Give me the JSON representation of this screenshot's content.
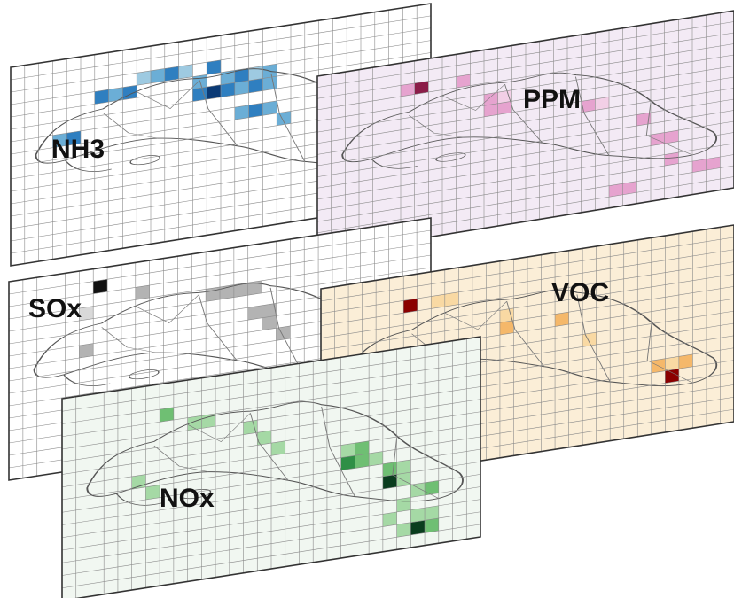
{
  "figure": {
    "panels": [
      {
        "id": "nh3",
        "label": "NH3",
        "background": "#ffffff",
        "colors": [
          "#d6e8f6",
          "#9ecae1",
          "#6baed6",
          "#2f7fc0",
          "#0b3a75"
        ],
        "cells": [
          [
            6,
            3,
            3
          ],
          [
            7,
            3,
            2
          ],
          [
            8,
            3,
            3
          ],
          [
            9,
            2,
            1
          ],
          [
            10,
            2,
            2
          ],
          [
            11,
            2,
            3
          ],
          [
            12,
            2,
            1
          ],
          [
            13,
            3,
            2
          ],
          [
            14,
            2,
            3
          ],
          [
            15,
            3,
            2
          ],
          [
            16,
            3,
            3
          ],
          [
            17,
            3,
            1
          ],
          [
            18,
            3,
            2
          ],
          [
            13,
            4,
            3
          ],
          [
            14,
            4,
            4
          ],
          [
            15,
            4,
            3
          ],
          [
            16,
            4,
            2
          ],
          [
            17,
            4,
            3
          ],
          [
            18,
            4,
            2
          ],
          [
            3,
            6,
            2
          ],
          [
            4,
            6,
            3
          ],
          [
            16,
            6,
            2
          ],
          [
            17,
            6,
            3
          ],
          [
            18,
            6,
            2
          ],
          [
            19,
            7,
            2
          ],
          [
            22,
            7,
            3
          ],
          [
            23,
            8,
            1
          ],
          [
            24,
            8,
            2
          ],
          [
            25,
            8,
            3
          ],
          [
            24,
            10,
            2
          ],
          [
            25,
            10,
            1
          ],
          [
            23,
            12,
            2
          ],
          [
            24,
            12,
            1
          ],
          [
            27,
            14,
            1
          ],
          [
            28,
            14,
            2
          ],
          [
            28,
            16,
            2
          ]
        ]
      },
      {
        "id": "ppm",
        "label": "PPM",
        "background": "#f3eaf5",
        "colors": [
          "#f2cfe6",
          "#e6a3cf",
          "#d566b0",
          "#8b1c48"
        ],
        "cells": [
          [
            7,
            2,
            3
          ],
          [
            6,
            2,
            1
          ],
          [
            10,
            2,
            1
          ],
          [
            12,
            4,
            1
          ],
          [
            13,
            4,
            0
          ],
          [
            12,
            5,
            1
          ],
          [
            13,
            5,
            1
          ],
          [
            19,
            6,
            1
          ],
          [
            20,
            6,
            0
          ],
          [
            23,
            8,
            1
          ],
          [
            24,
            10,
            1
          ],
          [
            25,
            10,
            1
          ],
          [
            25,
            12,
            1
          ],
          [
            27,
            13,
            1
          ],
          [
            28,
            13,
            1
          ],
          [
            21,
            14,
            1
          ],
          [
            22,
            14,
            1
          ]
        ]
      },
      {
        "id": "sox",
        "label": "SOx",
        "background": "#ffffff",
        "colors": [
          "#d9d9d9",
          "#b3b3b3",
          "#8c8c8c",
          "#111111"
        ],
        "cells": [
          [
            6,
            1,
            3
          ],
          [
            9,
            2,
            1
          ],
          [
            5,
            3,
            0
          ],
          [
            14,
            3,
            1
          ],
          [
            15,
            3,
            1
          ],
          [
            16,
            3,
            1
          ],
          [
            17,
            3,
            1
          ],
          [
            17,
            5,
            1
          ],
          [
            18,
            5,
            1
          ],
          [
            18,
            6,
            1
          ],
          [
            19,
            7,
            1
          ],
          [
            5,
            6,
            1
          ]
        ]
      },
      {
        "id": "voc",
        "label": "VOC",
        "background": "#fbeed7",
        "colors": [
          "#f9d9a3",
          "#f5b86a",
          "#e58a3a",
          "#8b0000"
        ],
        "cells": [
          [
            6,
            2,
            3
          ],
          [
            8,
            2,
            0
          ],
          [
            9,
            2,
            0
          ],
          [
            13,
            4,
            0
          ],
          [
            13,
            5,
            1
          ],
          [
            17,
            5,
            1
          ],
          [
            24,
            10,
            1
          ],
          [
            25,
            10,
            0
          ],
          [
            26,
            10,
            1
          ],
          [
            25,
            11,
            3
          ],
          [
            19,
            7,
            0
          ]
        ]
      },
      {
        "id": "nox",
        "label": "NOx",
        "background": "#f1f7f1",
        "colors": [
          "#d3ecd3",
          "#a5d9a5",
          "#6fbf73",
          "#2f8f46",
          "#0a3d1e"
        ],
        "cells": [
          [
            7,
            2,
            2
          ],
          [
            9,
            3,
            1
          ],
          [
            10,
            3,
            1
          ],
          [
            13,
            4,
            1
          ],
          [
            14,
            5,
            1
          ],
          [
            15,
            6,
            1
          ],
          [
            20,
            7,
            1
          ],
          [
            21,
            7,
            2
          ],
          [
            20,
            8,
            3
          ],
          [
            21,
            8,
            2
          ],
          [
            22,
            8,
            1
          ],
          [
            23,
            9,
            2
          ],
          [
            24,
            9,
            1
          ],
          [
            23,
            10,
            4
          ],
          [
            24,
            10,
            1
          ],
          [
            25,
            11,
            1
          ],
          [
            26,
            11,
            2
          ],
          [
            24,
            12,
            1
          ],
          [
            23,
            13,
            1
          ],
          [
            25,
            13,
            1
          ],
          [
            26,
            13,
            1
          ],
          [
            24,
            14,
            1
          ],
          [
            25,
            14,
            4
          ],
          [
            26,
            14,
            2
          ],
          [
            5,
            7,
            1
          ],
          [
            6,
            8,
            1
          ]
        ]
      }
    ]
  }
}
